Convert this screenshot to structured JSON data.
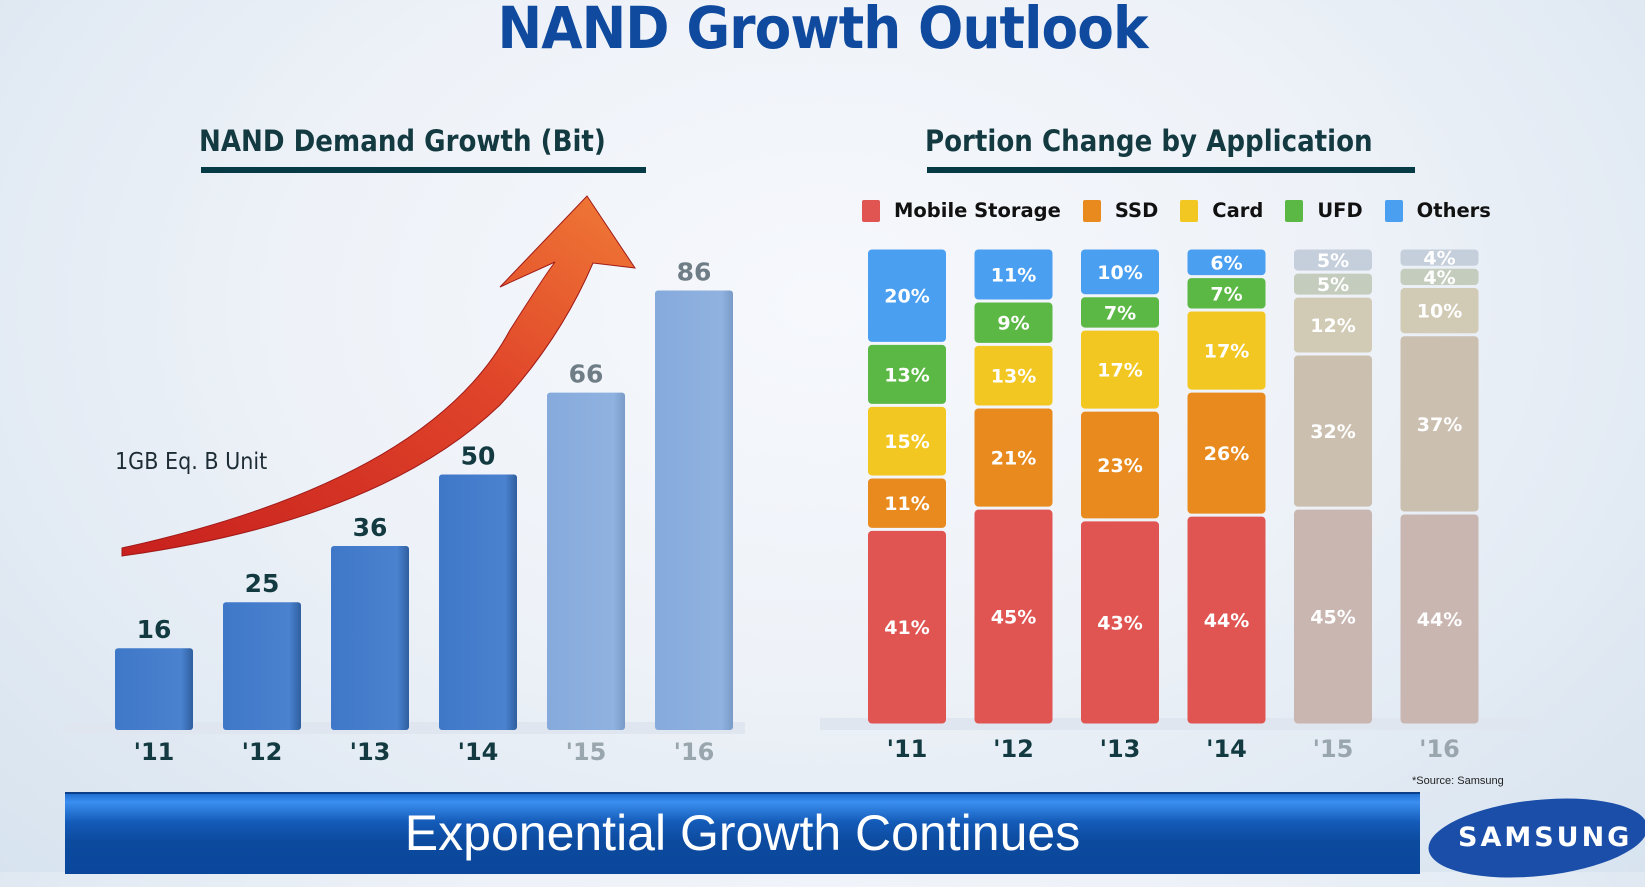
{
  "slide": {
    "title": "NAND Growth Outlook",
    "banner": "Exponential Growth Continues",
    "source": "*Source: Samsung",
    "logo": "SAMSUNG"
  },
  "colors": {
    "title": "#0f4a9e",
    "bar_actual": "#4a82cf",
    "bar_forecast": "#8fb2e0",
    "arrow": "#e0452a",
    "mobile_storage": "#e05552",
    "ssd": "#e88a1e",
    "card": "#f2c721",
    "ufd": "#5cb845",
    "others": "#4a9ff0"
  },
  "chart_data": [
    {
      "type": "bar",
      "title": "NAND Demand Growth (Bit)",
      "unit_label": "1GB Eq. B Unit",
      "categories": [
        "'11",
        "'12",
        "'13",
        "'14",
        "'15",
        "'16"
      ],
      "values": [
        16,
        25,
        36,
        50,
        66,
        86
      ],
      "forecast": [
        false,
        false,
        false,
        false,
        true,
        true
      ],
      "ylim": [
        0,
        90
      ],
      "grid": false,
      "annotation": "upward growth arrow"
    },
    {
      "type": "bar",
      "stacked": true,
      "title": "Portion Change by Application",
      "categories": [
        "'11",
        "'12",
        "'13",
        "'14",
        "'15",
        "'16"
      ],
      "forecast": [
        false,
        false,
        false,
        false,
        true,
        true
      ],
      "legend": [
        "Mobile Storage",
        "SSD",
        "Card",
        "UFD",
        "Others"
      ],
      "legend_position": "top",
      "series": [
        {
          "name": "Mobile Storage",
          "values": [
            41,
            45,
            43,
            44,
            45,
            44
          ]
        },
        {
          "name": "SSD",
          "values": [
            11,
            21,
            23,
            26,
            32,
            37
          ]
        },
        {
          "name": "Card",
          "values": [
            15,
            13,
            17,
            17,
            12,
            10
          ]
        },
        {
          "name": "UFD",
          "values": [
            13,
            9,
            7,
            7,
            5,
            4
          ]
        },
        {
          "name": "Others",
          "values": [
            20,
            11,
            10,
            6,
            5,
            4
          ]
        }
      ],
      "unit": "%",
      "ylim": [
        0,
        100
      ],
      "grid": false
    }
  ]
}
